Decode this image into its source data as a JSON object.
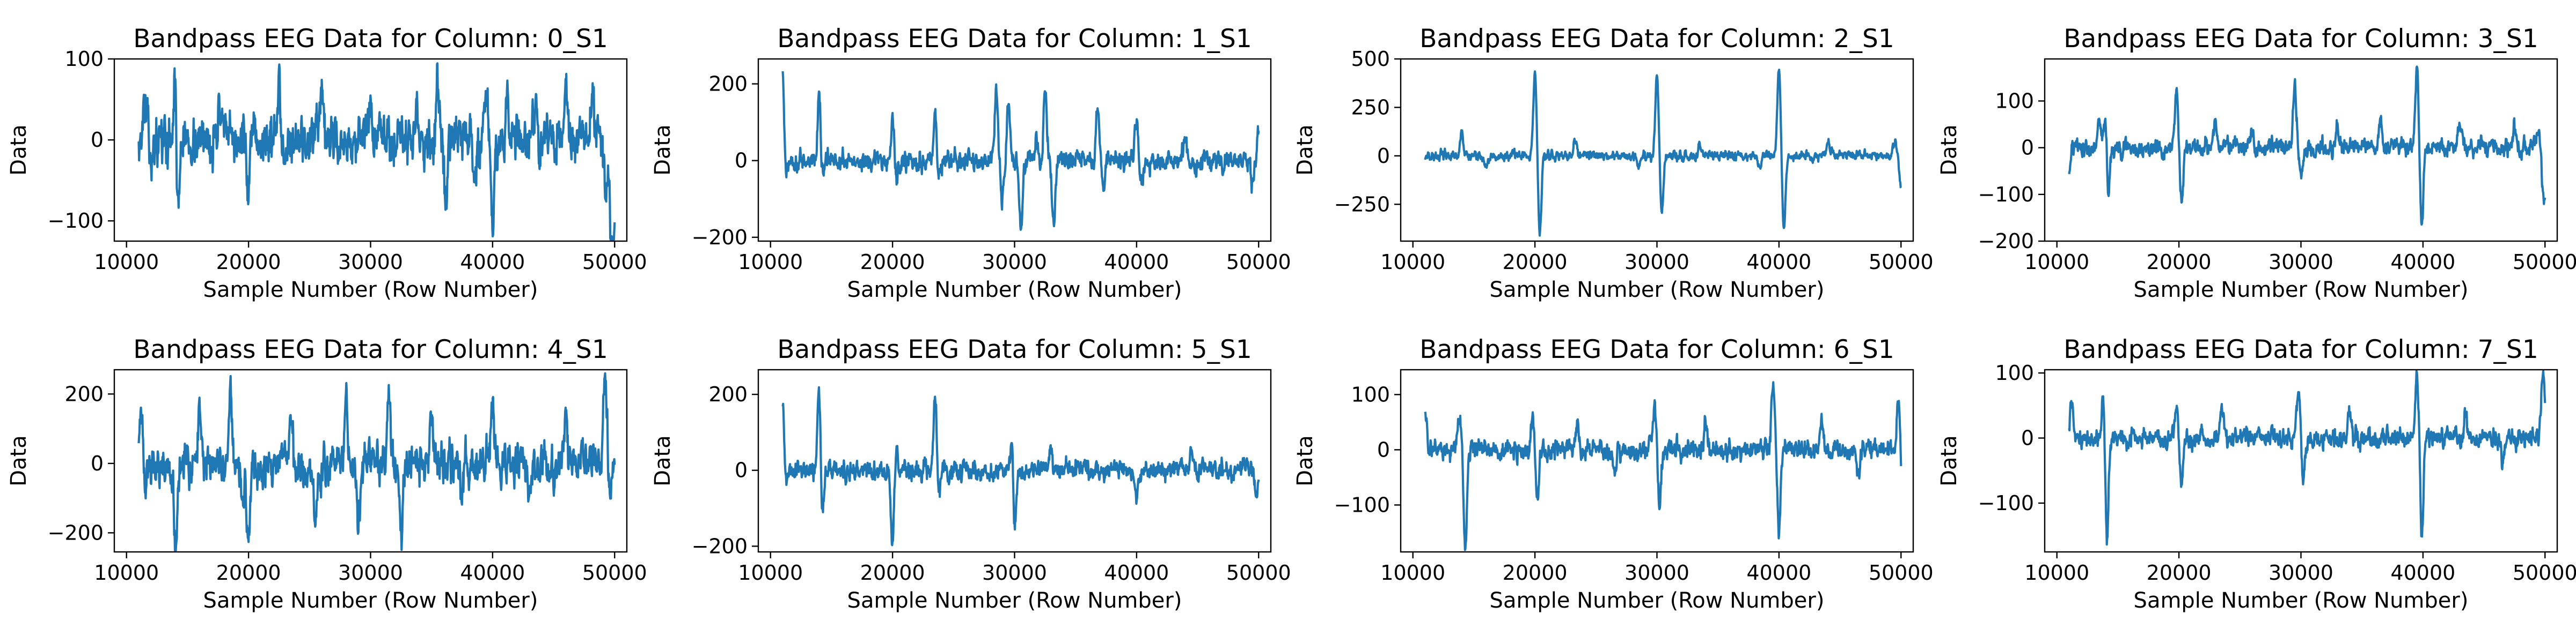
{
  "chart_data": [
    {
      "type": "line",
      "title": "Bandpass EEG Data for Column: 0_S1",
      "xlabel": "Sample Number (Row Number)",
      "ylabel": "Data",
      "xlim": [
        9000,
        51000
      ],
      "ylim": [
        -125,
        100
      ],
      "xticks": [
        10000,
        20000,
        30000,
        40000,
        50000
      ],
      "yticks": [
        -100,
        0,
        100
      ],
      "series": [
        {
          "color": "#1f77b4",
          "x_range": [
            11000,
            50000
          ],
          "baseline": 0,
          "noise": 21,
          "spikes": [
            [
              11500,
              45
            ],
            [
              12100,
              -25
            ],
            [
              14000,
              90
            ],
            [
              14200,
              -105
            ],
            [
              17600,
              45
            ],
            [
              20000,
              -70
            ],
            [
              22500,
              60
            ],
            [
              26000,
              40
            ],
            [
              30000,
              40
            ],
            [
              33800,
              50
            ],
            [
              35500,
              65
            ],
            [
              36200,
              -80
            ],
            [
              38500,
              -50
            ],
            [
              39500,
              70
            ],
            [
              40000,
              -90
            ],
            [
              41200,
              60
            ],
            [
              43500,
              55
            ],
            [
              46000,
              55
            ],
            [
              48200,
              75
            ],
            [
              49300,
              -60
            ],
            [
              49700,
              -95
            ],
            [
              49900,
              -115
            ]
          ]
        }
      ]
    },
    {
      "type": "line",
      "title": "Bandpass EEG Data for Column: 1_S1",
      "xlabel": "Sample Number (Row Number)",
      "ylabel": "Data",
      "xlim": [
        9000,
        51000
      ],
      "ylim": [
        -210,
        265
      ],
      "xticks": [
        10000,
        20000,
        30000,
        40000,
        50000
      ],
      "yticks": [
        -200,
        0,
        200
      ],
      "series": [
        {
          "color": "#1f77b4",
          "x_range": [
            11000,
            50000
          ],
          "baseline": 0,
          "noise": 18,
          "spikes": [
            [
              11000,
              240
            ],
            [
              11200,
              -60
            ],
            [
              14000,
              190
            ],
            [
              14200,
              -60
            ],
            [
              20000,
              110
            ],
            [
              20300,
              -50
            ],
            [
              23500,
              140
            ],
            [
              23800,
              -50
            ],
            [
              28500,
              170
            ],
            [
              29000,
              -100
            ],
            [
              29500,
              150
            ],
            [
              30500,
              -180
            ],
            [
              31800,
              60
            ],
            [
              32500,
              195
            ],
            [
              33200,
              -180
            ],
            [
              36800,
              150
            ],
            [
              37300,
              -70
            ],
            [
              40000,
              110
            ],
            [
              40400,
              -60
            ],
            [
              44000,
              60
            ],
            [
              49500,
              -60
            ],
            [
              50000,
              100
            ]
          ]
        }
      ]
    },
    {
      "type": "line",
      "title": "Bandpass EEG Data for Column: 2_S1",
      "xlabel": "Sample Number (Row Number)",
      "ylabel": "Data",
      "xlim": [
        9000,
        51000
      ],
      "ylim": [
        -440,
        500
      ],
      "xticks": [
        10000,
        20000,
        30000,
        40000,
        50000
      ],
      "yticks": [
        -250,
        0,
        250,
        500
      ],
      "series": [
        {
          "color": "#1f77b4",
          "x_range": [
            11000,
            50000
          ],
          "baseline": 0,
          "noise": 17,
          "spikes": [
            [
              14000,
              130
            ],
            [
              16000,
              -60
            ],
            [
              20000,
              440
            ],
            [
              20400,
              -400
            ],
            [
              23300,
              80
            ],
            [
              28500,
              -50
            ],
            [
              30000,
              420
            ],
            [
              30400,
              -300
            ],
            [
              33500,
              60
            ],
            [
              38500,
              -60
            ],
            [
              40000,
              460
            ],
            [
              40400,
              -390
            ],
            [
              44000,
              70
            ],
            [
              49500,
              80
            ],
            [
              50000,
              -150
            ]
          ]
        }
      ]
    },
    {
      "type": "line",
      "title": "Bandpass EEG Data for Column: 3_S1",
      "xlabel": "Sample Number (Row Number)",
      "ylabel": "Data",
      "xlim": [
        9000,
        51000
      ],
      "ylim": [
        -200,
        190
      ],
      "xticks": [
        10000,
        20000,
        30000,
        40000,
        50000
      ],
      "yticks": [
        -200,
        -100,
        0,
        100
      ],
      "series": [
        {
          "color": "#1f77b4",
          "x_range": [
            11000,
            50000
          ],
          "baseline": 0,
          "noise": 13,
          "spikes": [
            [
              11000,
              -50
            ],
            [
              13500,
              60
            ],
            [
              14000,
              85
            ],
            [
              14200,
              -120
            ],
            [
              19800,
              115
            ],
            [
              20200,
              -120
            ],
            [
              23000,
              50
            ],
            [
              26000,
              40
            ],
            [
              29500,
              140
            ],
            [
              30000,
              -70
            ],
            [
              33000,
              50
            ],
            [
              36500,
              50
            ],
            [
              39500,
              175
            ],
            [
              39900,
              -170
            ],
            [
              43000,
              50
            ],
            [
              47500,
              50
            ],
            [
              49500,
              45
            ],
            [
              49800,
              -70
            ],
            [
              50000,
              -80
            ]
          ]
        }
      ]
    },
    {
      "type": "line",
      "title": "Bandpass EEG Data for Column: 4_S1",
      "xlabel": "Sample Number (Row Number)",
      "ylabel": "Data",
      "xlim": [
        9000,
        51000
      ],
      "ylim": [
        -255,
        270
      ],
      "xticks": [
        10000,
        20000,
        30000,
        40000,
        50000
      ],
      "yticks": [
        -200,
        0,
        200
      ],
      "series": [
        {
          "color": "#1f77b4",
          "x_range": [
            11000,
            50000
          ],
          "baseline": 0,
          "noise": 42,
          "spikes": [
            [
              11200,
              175
            ],
            [
              11500,
              -80
            ],
            [
              14000,
              -230
            ],
            [
              16000,
              160
            ],
            [
              18500,
              200
            ],
            [
              19500,
              -150
            ],
            [
              20000,
              -245
            ],
            [
              23500,
              130
            ],
            [
              25500,
              -150
            ],
            [
              28000,
              230
            ],
            [
              29000,
              -170
            ],
            [
              31500,
              210
            ],
            [
              32500,
              -220
            ],
            [
              35000,
              150
            ],
            [
              37500,
              -130
            ],
            [
              40000,
              200
            ],
            [
              43000,
              -130
            ],
            [
              46000,
              150
            ],
            [
              49200,
              230
            ],
            [
              49700,
              -110
            ]
          ]
        }
      ]
    },
    {
      "type": "line",
      "title": "Bandpass EEG Data for Column: 5_S1",
      "xlabel": "Sample Number (Row Number)",
      "ylabel": "Data",
      "xlim": [
        9000,
        51000
      ],
      "ylim": [
        -215,
        265
      ],
      "xticks": [
        10000,
        20000,
        30000,
        40000,
        50000
      ],
      "yticks": [
        -200,
        0,
        200
      ],
      "series": [
        {
          "color": "#1f77b4",
          "x_range": [
            11000,
            50000
          ],
          "baseline": 0,
          "noise": 18,
          "spikes": [
            [
              11000,
              165
            ],
            [
              11200,
              -40
            ],
            [
              14000,
              240
            ],
            [
              14200,
              -145
            ],
            [
              20000,
              -200
            ],
            [
              20300,
              60
            ],
            [
              23500,
              205
            ],
            [
              23800,
              -60
            ],
            [
              29800,
              100
            ],
            [
              30000,
              -170
            ],
            [
              33000,
              50
            ],
            [
              40000,
              -60
            ],
            [
              44500,
              50
            ],
            [
              49800,
              -60
            ]
          ]
        }
      ]
    },
    {
      "type": "line",
      "title": "Bandpass EEG Data for Column: 6_S1",
      "xlabel": "Sample Number (Row Number)",
      "ylabel": "Data",
      "xlim": [
        9000,
        51000
      ],
      "ylim": [
        -185,
        145
      ],
      "xticks": [
        10000,
        20000,
        30000,
        40000,
        50000
      ],
      "yticks": [
        -100,
        0,
        100
      ],
      "series": [
        {
          "color": "#1f77b4",
          "x_range": [
            11000,
            50000
          ],
          "baseline": 0,
          "noise": 12,
          "spikes": [
            [
              11000,
              65
            ],
            [
              13800,
              60
            ],
            [
              14300,
              -180
            ],
            [
              19800,
              60
            ],
            [
              20200,
              -100
            ],
            [
              23500,
              55
            ],
            [
              26500,
              -50
            ],
            [
              29800,
              80
            ],
            [
              30200,
              -90
            ],
            [
              34000,
              55
            ],
            [
              39500,
              120
            ],
            [
              40000,
              -145
            ],
            [
              43500,
              55
            ],
            [
              46500,
              -45
            ],
            [
              49800,
              110
            ],
            [
              50000,
              -40
            ]
          ]
        }
      ]
    },
    {
      "type": "line",
      "title": "Bandpass EEG Data for Column: 7_S1",
      "xlabel": "Sample Number (Row Number)",
      "ylabel": "Data",
      "xlim": [
        9000,
        51000
      ],
      "ylim": [
        -175,
        105
      ],
      "xticks": [
        10000,
        20000,
        30000,
        40000,
        50000
      ],
      "yticks": [
        -100,
        0,
        100
      ],
      "series": [
        {
          "color": "#1f77b4",
          "x_range": [
            11000,
            50000
          ],
          "baseline": 0,
          "noise": 10,
          "spikes": [
            [
              11200,
              60
            ],
            [
              13800,
              75
            ],
            [
              14100,
              -165
            ],
            [
              19800,
              50
            ],
            [
              20200,
              -85
            ],
            [
              23500,
              40
            ],
            [
              29800,
              75
            ],
            [
              30200,
              -70
            ],
            [
              34000,
              40
            ],
            [
              39500,
              95
            ],
            [
              39900,
              -140
            ],
            [
              43500,
              40
            ],
            [
              46500,
              -35
            ],
            [
              49800,
              80
            ],
            [
              50000,
              30
            ]
          ]
        }
      ]
    }
  ]
}
